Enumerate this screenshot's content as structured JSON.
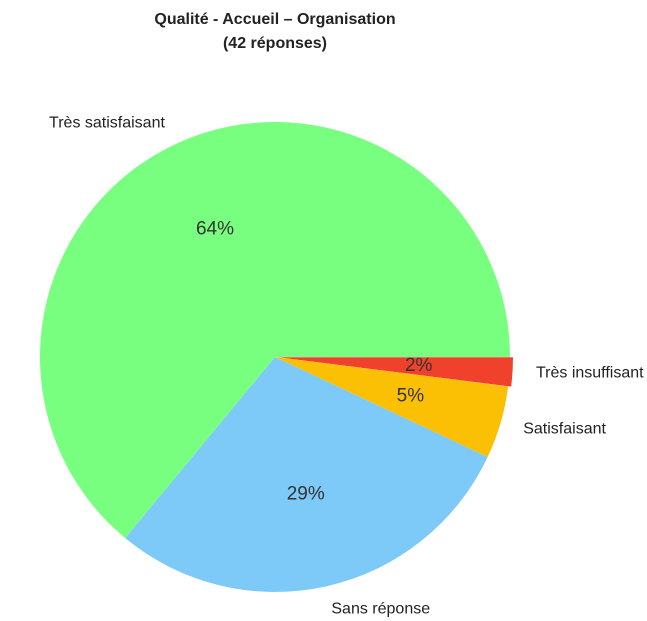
{
  "chart_data": {
    "type": "pie",
    "title": "Qualité - Accueil – Organisation",
    "subtitle": "(42 réponses)",
    "categories": [
      "Très insuffisant",
      "Satisfaisant",
      "Sans réponse",
      "Très satisfaisant"
    ],
    "values": [
      2,
      5,
      29,
      64
    ],
    "value_labels": [
      "2%",
      "5%",
      "29%",
      "64%"
    ],
    "colors": [
      "#f0412c",
      "#fbc004",
      "#7dc9f7",
      "#78ff7f"
    ]
  }
}
